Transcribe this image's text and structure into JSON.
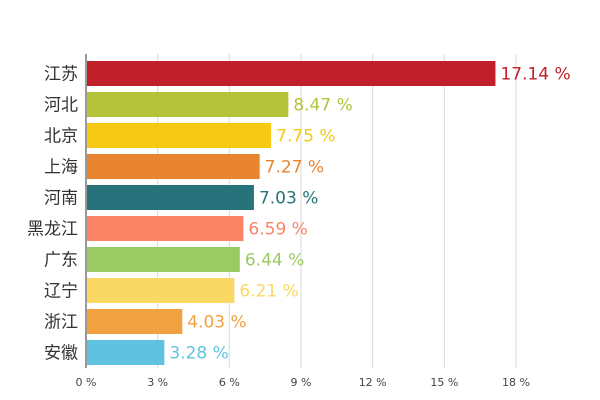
{
  "chart_data": {
    "type": "bar",
    "orientation": "horizontal",
    "categories": [
      "江苏",
      "河北",
      "北京",
      "上海",
      "河南",
      "黑龙江",
      "广东",
      "辽宁",
      "浙江",
      "安徽"
    ],
    "values": [
      17.14,
      8.47,
      7.75,
      7.27,
      7.03,
      6.59,
      6.44,
      6.21,
      4.03,
      3.28
    ],
    "value_labels": [
      "17.14 %",
      "8.47 %",
      "7.75 %",
      "7.27 %",
      "7.03 %",
      "6.59 %",
      "6.44 %",
      "6.21 %",
      "4.03 %",
      "3.28 %"
    ],
    "colors": [
      "#c0202a",
      "#b5c33b",
      "#f6c915",
      "#e88430",
      "#27727b",
      "#fb8466",
      "#9bca63",
      "#f9d864",
      "#f1a13f",
      "#5fc3e0"
    ],
    "x_ticks": [
      "0 %",
      "3 %",
      "6 %",
      "9 %",
      "12 %",
      "15 %",
      "18 %"
    ],
    "xlim": [
      0,
      18
    ],
    "grid": true,
    "title": "",
    "xlabel": "",
    "ylabel": ""
  }
}
